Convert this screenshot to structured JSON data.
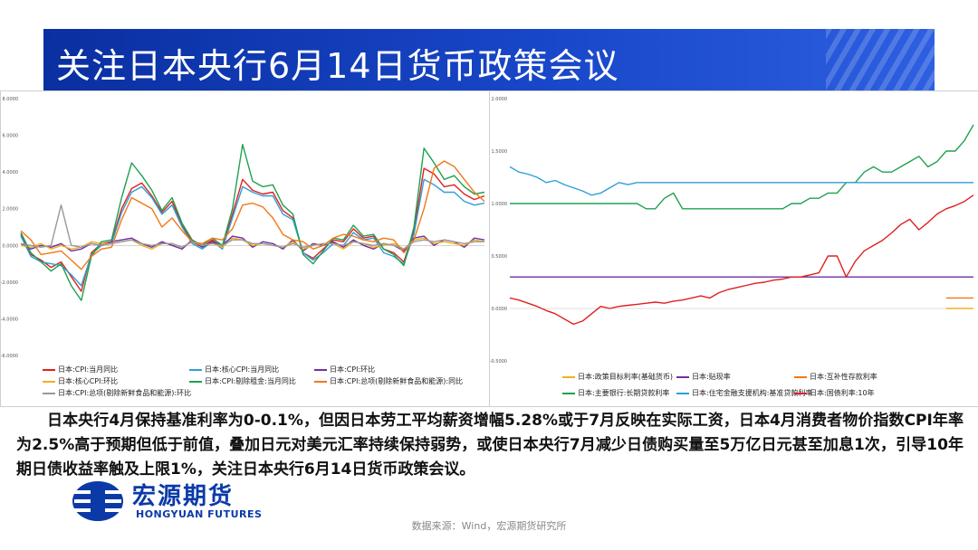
{
  "page": {
    "title": "关注日本央行6月14日货币政策会议",
    "body": "日本央行4月保持基准利率为0-0.1%，但因日本劳工平均薪资增幅5.28%或于7月反映在实际工资，日本4月消费者物价指数CPI年率为2.5%高于预期但低于前值，叠加日元对美元汇率持续保持弱势，或使日本央行7月减少日债购买量至5万亿日元甚至加息1次，引导10年期日债收益率触及上限1%，关注日本央行6月14日货币政策会议。",
    "source": "数据来源：Wind，宏源期货研究所",
    "logo_cn": "宏源期货",
    "logo_en": "HONGYUAN FUTURES"
  },
  "chart_data": [
    {
      "type": "line",
      "ylim": [
        -6,
        8
      ],
      "yticks": [
        "8.0000",
        "6.0000",
        "4.0000",
        "2.0000",
        "0.0000",
        "-2.0000",
        "-4.0000",
        "-6.0000"
      ],
      "series": [
        {
          "name": "日本:CPI:当月同比",
          "color": "#e02020",
          "values": [
            0.6,
            -0.5,
            -0.8,
            -1.2,
            -0.9,
            -1.7,
            -2.5,
            -0.4,
            0.1,
            0.2,
            2.0,
            3.1,
            3.4,
            2.7,
            1.8,
            2.4,
            1.1,
            0.2,
            -0.1,
            0.3,
            -0.1,
            1.7,
            3.6,
            3.0,
            2.8,
            2.9,
            1.9,
            1.5,
            -0.4,
            -0.7,
            -0.2,
            0.3,
            0.2,
            0.9,
            0.4,
            0.5,
            -0.2,
            -0.4,
            -0.9,
            0.8,
            4.2,
            3.9,
            3.2,
            3.3,
            2.8,
            2.5,
            2.7
          ]
        },
        {
          "name": "日本:核心CPI:当月同比",
          "color": "#2f9fd8",
          "values": [
            0.5,
            -0.6,
            -0.9,
            -1.0,
            -1.1,
            -1.6,
            -2.2,
            -0.5,
            0.0,
            0.1,
            1.8,
            2.9,
            3.2,
            2.6,
            1.7,
            2.2,
            1.0,
            0.1,
            -0.2,
            0.2,
            -0.2,
            1.5,
            3.2,
            2.9,
            2.7,
            2.7,
            1.7,
            1.4,
            -0.4,
            -0.8,
            -0.4,
            0.1,
            0.0,
            0.7,
            0.3,
            0.4,
            -0.4,
            -0.6,
            -1.0,
            0.6,
            3.6,
            3.3,
            2.9,
            2.9,
            2.4,
            2.2,
            2.3
          ]
        },
        {
          "name": "日本:CPI:环比",
          "color": "#7030a0",
          "values": [
            0.1,
            -0.2,
            0.0,
            -0.1,
            0.1,
            -0.3,
            -0.2,
            0.1,
            0.0,
            0.2,
            0.3,
            0.4,
            0.1,
            -0.1,
            0.2,
            0.0,
            -0.2,
            0.3,
            -0.1,
            0.2,
            0.0,
            0.5,
            0.4,
            -0.1,
            0.2,
            0.1,
            -0.2,
            0.3,
            -0.3,
            0.1,
            0.0,
            0.2,
            -0.1,
            0.3,
            0.0,
            -0.2,
            0.1,
            0.0,
            -0.3,
            0.4,
            0.5,
            0.0,
            0.3,
            0.2,
            -0.1,
            0.4,
            0.3
          ]
        },
        {
          "name": "日本:核心CPI:环比",
          "color": "#f0b020",
          "values": [
            0.0,
            -0.1,
            0.1,
            -0.2,
            0.0,
            -0.2,
            -0.1,
            0.2,
            0.1,
            0.1,
            0.2,
            0.3,
            0.0,
            -0.2,
            0.1,
            0.1,
            -0.1,
            0.2,
            0.0,
            0.1,
            -0.1,
            0.4,
            0.3,
            0.0,
            0.1,
            0.0,
            -0.1,
            0.2,
            -0.2,
            0.0,
            0.1,
            0.1,
            -0.2,
            0.2,
            0.1,
            -0.1,
            0.0,
            0.1,
            -0.2,
            0.3,
            0.4,
            0.1,
            0.2,
            0.1,
            0.0,
            0.3,
            0.2
          ]
        },
        {
          "name": "日本:CPI:剔除租金:当月同比",
          "color": "#20a050",
          "values": [
            0.7,
            -0.4,
            -0.9,
            -1.4,
            -1.0,
            -2.2,
            -3.0,
            -0.6,
            0.2,
            0.3,
            2.6,
            4.5,
            3.8,
            3.0,
            1.9,
            2.6,
            1.2,
            0.3,
            0.0,
            0.4,
            0.0,
            2.0,
            5.5,
            3.5,
            3.2,
            3.3,
            2.2,
            1.7,
            -0.5,
            -1.0,
            -0.3,
            0.4,
            0.3,
            1.1,
            0.5,
            0.6,
            -0.2,
            -0.5,
            -1.1,
            1.0,
            5.3,
            4.5,
            3.6,
            3.8,
            3.2,
            2.8,
            2.9
          ]
        },
        {
          "name": "日本:CPI:总项(剔除新鲜食品和能源):同比",
          "color": "#f07818",
          "values": [
            0.8,
            0.3,
            -0.5,
            -0.4,
            -0.3,
            -0.8,
            -1.3,
            -0.6,
            -0.2,
            -0.1,
            1.4,
            2.6,
            2.3,
            2.0,
            1.0,
            1.5,
            0.8,
            0.2,
            0.1,
            0.4,
            0.3,
            0.9,
            2.2,
            2.3,
            2.1,
            1.5,
            0.6,
            0.3,
            0.2,
            -0.2,
            0.0,
            0.4,
            0.6,
            0.5,
            0.3,
            0.2,
            0.4,
            0.3,
            -0.4,
            0.3,
            2.0,
            4.2,
            4.6,
            4.3,
            3.6,
            2.9,
            2.4
          ]
        },
        {
          "name": "日本:CPI:总项(剔除新鲜食品和能源):环比",
          "color": "#999999",
          "values": [
            0.1,
            0.0,
            -0.1,
            0.0,
            2.2,
            0.0,
            -0.1,
            0.1,
            0.0,
            0.1,
            0.2,
            0.3,
            0.1,
            0.0,
            0.1,
            0.1,
            -0.1,
            0.2,
            0.0,
            0.1,
            0.0,
            0.3,
            0.3,
            0.1,
            0.1,
            0.0,
            -0.1,
            0.1,
            -0.1,
            0.0,
            0.1,
            0.1,
            0.0,
            0.2,
            0.1,
            0.0,
            0.1,
            0.0,
            -0.2,
            0.2,
            0.3,
            0.2,
            0.3,
            0.2,
            0.1,
            0.2,
            0.2
          ]
        }
      ]
    },
    {
      "type": "line",
      "ylim": [
        -0.5,
        2.0
      ],
      "yticks": [
        "2.0000",
        "1.5000",
        "1.0000",
        "0.5000",
        "0.0000",
        "-0.5000"
      ],
      "series": [
        {
          "name": "日本:政策目标利率(基础货币)",
          "color": "#f0b020",
          "values": [
            null,
            null,
            null,
            null,
            null,
            null,
            null,
            null,
            null,
            null,
            null,
            null,
            null,
            null,
            null,
            null,
            null,
            null,
            null,
            null,
            null,
            null,
            null,
            null,
            null,
            null,
            null,
            null,
            null,
            null,
            null,
            null,
            null,
            null,
            null,
            null,
            null,
            null,
            null,
            null,
            null,
            null,
            null,
            null,
            null,
            null,
            null,
            null,
            0.0,
            0.0,
            0.0,
            0.0
          ]
        },
        {
          "name": "日本:贴现率",
          "color": "#7030a0",
          "values": [
            0.3,
            0.3,
            0.3,
            0.3,
            0.3,
            0.3,
            0.3,
            0.3,
            0.3,
            0.3,
            0.3,
            0.3,
            0.3,
            0.3,
            0.3,
            0.3,
            0.3,
            0.3,
            0.3,
            0.3,
            0.3,
            0.3,
            0.3,
            0.3,
            0.3,
            0.3,
            0.3,
            0.3,
            0.3,
            0.3,
            0.3,
            0.3,
            0.3,
            0.3,
            0.3,
            0.3,
            0.3,
            0.3,
            0.3,
            0.3,
            0.3,
            0.3,
            0.3,
            0.3,
            0.3,
            0.3,
            0.3,
            0.3,
            0.3,
            0.3,
            0.3,
            0.3
          ]
        },
        {
          "name": "日本:互补性存款利率",
          "color": "#f07818",
          "values": [
            null,
            null,
            null,
            null,
            null,
            null,
            null,
            null,
            null,
            null,
            null,
            null,
            null,
            null,
            null,
            null,
            null,
            null,
            null,
            null,
            null,
            null,
            null,
            null,
            null,
            null,
            null,
            null,
            null,
            null,
            null,
            null,
            null,
            null,
            null,
            null,
            null,
            null,
            null,
            null,
            null,
            null,
            null,
            null,
            null,
            null,
            null,
            null,
            0.1,
            0.1,
            0.1,
            0.1
          ]
        },
        {
          "name": "日本:主要银行:长期贷款利率",
          "color": "#20a050",
          "values": [
            1.0,
            1.0,
            1.0,
            1.0,
            1.0,
            1.0,
            1.0,
            1.0,
            1.0,
            1.0,
            1.0,
            1.0,
            1.0,
            1.0,
            1.0,
            0.95,
            0.95,
            1.05,
            1.1,
            0.95,
            0.95,
            0.95,
            0.95,
            0.95,
            0.95,
            0.95,
            0.95,
            0.95,
            0.95,
            0.95,
            0.95,
            1.0,
            1.0,
            1.05,
            1.05,
            1.1,
            1.1,
            1.2,
            1.2,
            1.3,
            1.35,
            1.3,
            1.3,
            1.35,
            1.4,
            1.45,
            1.35,
            1.4,
            1.5,
            1.5,
            1.6,
            1.75
          ]
        },
        {
          "name": "日本:住宅金融支援机构:基准贷款利率",
          "color": "#2f9fd8",
          "values": [
            1.35,
            1.3,
            1.28,
            1.25,
            1.2,
            1.22,
            1.18,
            1.15,
            1.12,
            1.08,
            1.1,
            1.15,
            1.2,
            1.18,
            1.2,
            1.2,
            1.2,
            1.2,
            1.2,
            1.2,
            1.2,
            1.2,
            1.2,
            1.2,
            1.2,
            1.2,
            1.2,
            1.2,
            1.2,
            1.2,
            1.2,
            1.2,
            1.2,
            1.2,
            1.2,
            1.2,
            1.2,
            1.2,
            1.2,
            1.2,
            1.2,
            1.2,
            1.2,
            1.2,
            1.2,
            1.2,
            1.2,
            1.2,
            1.2,
            1.2,
            1.2,
            1.2
          ]
        },
        {
          "name": "日本:国债利率:10年",
          "color": "#e02020",
          "values": [
            0.1,
            0.08,
            0.05,
            0.02,
            -0.02,
            -0.05,
            -0.1,
            -0.15,
            -0.12,
            -0.05,
            0.02,
            0.0,
            0.02,
            0.03,
            0.04,
            0.05,
            0.06,
            0.05,
            0.07,
            0.08,
            0.1,
            0.12,
            0.1,
            0.15,
            0.18,
            0.2,
            0.22,
            0.24,
            0.25,
            0.27,
            0.28,
            0.3,
            0.3,
            0.32,
            0.34,
            0.5,
            0.5,
            0.3,
            0.45,
            0.55,
            0.6,
            0.65,
            0.72,
            0.8,
            0.85,
            0.75,
            0.82,
            0.9,
            0.95,
            0.98,
            1.02,
            1.08
          ]
        }
      ]
    }
  ]
}
